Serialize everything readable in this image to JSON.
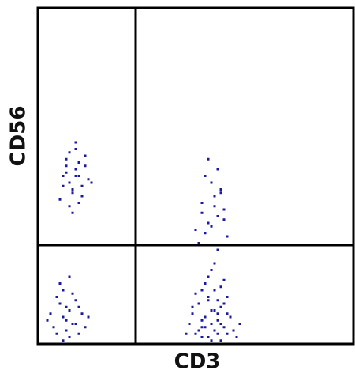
{
  "chart_data": {
    "type": "scatter",
    "x_label": "CD3",
    "y_label": "CD56",
    "xlim": [
      0,
      100
    ],
    "ylim": [
      0,
      100
    ],
    "gates": {
      "x": 31,
      "y": 29.4
    },
    "series": [
      {
        "color": "#1a1aa0",
        "x": [
          8,
          10,
          12,
          14,
          9,
          11,
          13,
          15,
          7,
          12,
          10,
          16,
          11,
          13,
          9,
          14,
          12,
          10,
          17,
          8,
          11,
          13,
          15,
          12,
          9,
          5,
          8,
          10,
          12,
          7,
          9,
          11,
          14,
          6,
          9,
          13,
          8,
          10,
          4,
          12,
          15,
          7,
          11,
          9,
          6,
          13,
          10,
          8,
          16,
          3,
          50,
          52,
          54,
          56,
          58,
          60,
          53,
          55,
          57,
          59,
          51,
          49,
          62,
          48,
          54,
          56,
          58,
          60,
          52,
          55,
          57,
          53,
          61,
          50,
          55,
          57,
          59,
          54,
          52,
          56,
          63,
          47,
          58,
          51,
          60,
          55,
          53,
          57,
          64,
          49,
          56,
          54,
          58,
          52,
          59,
          51,
          53,
          55,
          57,
          59,
          52,
          56,
          58,
          54,
          55,
          60,
          53,
          57,
          52,
          58,
          56,
          54,
          59,
          50,
          57
        ],
        "y": [
          50,
          48,
          52,
          47,
          55,
          45,
          50,
          53,
          43,
          58,
          41,
          49,
          46,
          54,
          51,
          44,
          60,
          57,
          48,
          47,
          39,
          42,
          56,
          50,
          53,
          5,
          8,
          10,
          6,
          12,
          4,
          15,
          9,
          3,
          7,
          11,
          16,
          2,
          9,
          13,
          5,
          18,
          6,
          11,
          14,
          3,
          20,
          1,
          8,
          7,
          3,
          5,
          2,
          4,
          6,
          3,
          8,
          10,
          7,
          5,
          12,
          9,
          4,
          6,
          14,
          16,
          11,
          9,
          2,
          1,
          13,
          18,
          8,
          15,
          6,
          3,
          12,
          20,
          7,
          10,
          2,
          3,
          17,
          4,
          14,
          22,
          5,
          9,
          6,
          11,
          24,
          13,
          1,
          16,
          19,
          30,
          33,
          35,
          38,
          40,
          42,
          44,
          46,
          36,
          48,
          32,
          50,
          52,
          39,
          45,
          41,
          55,
          37,
          34,
          28
        ]
      }
    ]
  }
}
